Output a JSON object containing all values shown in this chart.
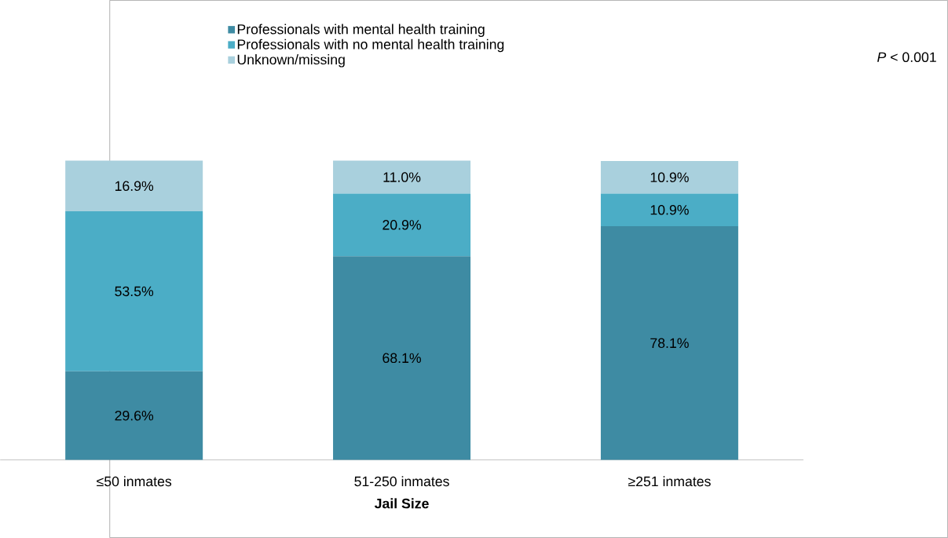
{
  "chart_data": {
    "type": "bar",
    "stacked": true,
    "xlabel": "Jail Size",
    "categories": [
      "≤50 inmates",
      "51-250 inmates",
      "≥251 inmates"
    ],
    "series": [
      {
        "name": "Professionals with mental health training",
        "color": "#3e8ba3",
        "values": [
          29.6,
          68.1,
          78.1
        ],
        "value_labels": [
          "29.6%",
          "68.1%",
          "78.1%"
        ]
      },
      {
        "name": "Professionals with no mental health training",
        "color": "#4badc6",
        "values": [
          53.5,
          20.9,
          10.9
        ],
        "value_labels": [
          "53.5%",
          "20.9%",
          "10.9%"
        ]
      },
      {
        "name": "Unknown/missing",
        "color": "#a9d0dd",
        "values": [
          16.9,
          11.0,
          10.9
        ],
        "value_labels": [
          "16.9%",
          "11.0%",
          "10.9%"
        ]
      }
    ],
    "legend": "top",
    "annotations": [
      "*P* < 0.001"
    ]
  }
}
